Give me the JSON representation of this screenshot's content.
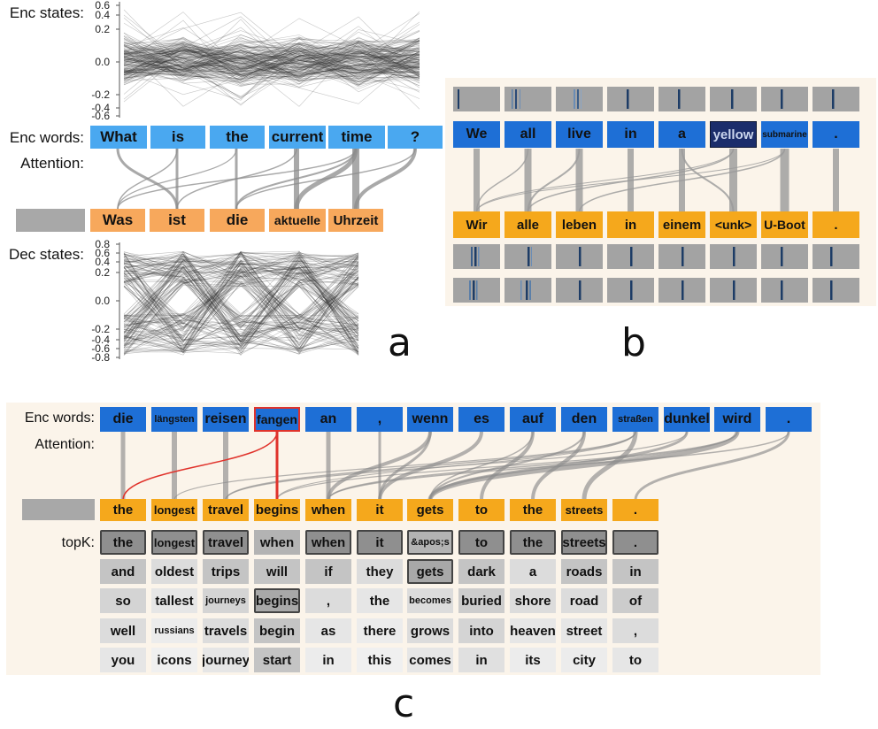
{
  "panel_a": {
    "label_enc_states": "Enc states:",
    "label_enc_words": "Enc words:",
    "label_attention": "Attention:",
    "label_dec_states": "Dec states:",
    "enc_ticks": [
      "0.6",
      "0.4",
      "0.2",
      "0.0",
      "-0.2",
      "-0.4",
      "-0.6"
    ],
    "dec_ticks": [
      "0.8",
      "0.6",
      "0.4",
      "0.2",
      "0.0",
      "-0.2",
      "-0.4",
      "-0.6",
      "-0.8"
    ],
    "enc_words": [
      "What",
      "is",
      "the",
      "current",
      "time",
      "?"
    ],
    "dec_words": [
      "Was",
      "ist",
      "die",
      "aktuelle",
      "Uhrzeit"
    ],
    "letter": "a"
  },
  "panel_b": {
    "enc_words": [
      "We",
      "all",
      "live",
      "in",
      "a",
      "yellow",
      "submarine",
      "."
    ],
    "dec_words": [
      "Wir",
      "alle",
      "leben",
      "in",
      "einem",
      "<unk>",
      "U-Boot",
      "."
    ],
    "letter": "b"
  },
  "panel_c": {
    "label_enc_words": "Enc words:",
    "label_attention": "Attention:",
    "label_topk": "topK:",
    "enc_words": [
      "die",
      "längsten",
      "reisen",
      "fangen",
      "an",
      ",",
      "wenn",
      "es",
      "auf",
      "den",
      "straßen",
      "dunkel",
      "wird",
      "."
    ],
    "dec_words": [
      "the",
      "longest",
      "travel",
      "begins",
      "when",
      "it",
      "gets",
      "to",
      "the",
      "streets",
      "."
    ],
    "topk": [
      [
        "the",
        "longest",
        "travel",
        "when",
        "when",
        "it",
        "&apos;s",
        "to",
        "the",
        "streets",
        "."
      ],
      [
        "and",
        "oldest",
        "trips",
        "will",
        "if",
        "they",
        "gets",
        "dark",
        "a",
        "roads",
        "in"
      ],
      [
        "so",
        "tallest",
        "journeys",
        "begins",
        ",",
        "the",
        "becomes",
        "buried",
        "shore",
        "road",
        "of"
      ],
      [
        "well",
        "russians",
        "travels",
        "begin",
        "as",
        "there",
        "grows",
        "into",
        "heaven",
        "street",
        ","
      ],
      [
        "you",
        "icons",
        "journey",
        "start",
        "in",
        "this",
        "comes",
        "in",
        "its",
        "city",
        "to"
      ]
    ],
    "letter": "c"
  },
  "colors": {
    "light_blue": "#4aa8f0",
    "orange": "#f7a85c",
    "blue": "#1e6fd6",
    "navy": "#1b2d6b",
    "yellow_orange": "#f5a81c",
    "attention_red": "#e0322b",
    "panel_background": "#fbf4ea"
  }
}
